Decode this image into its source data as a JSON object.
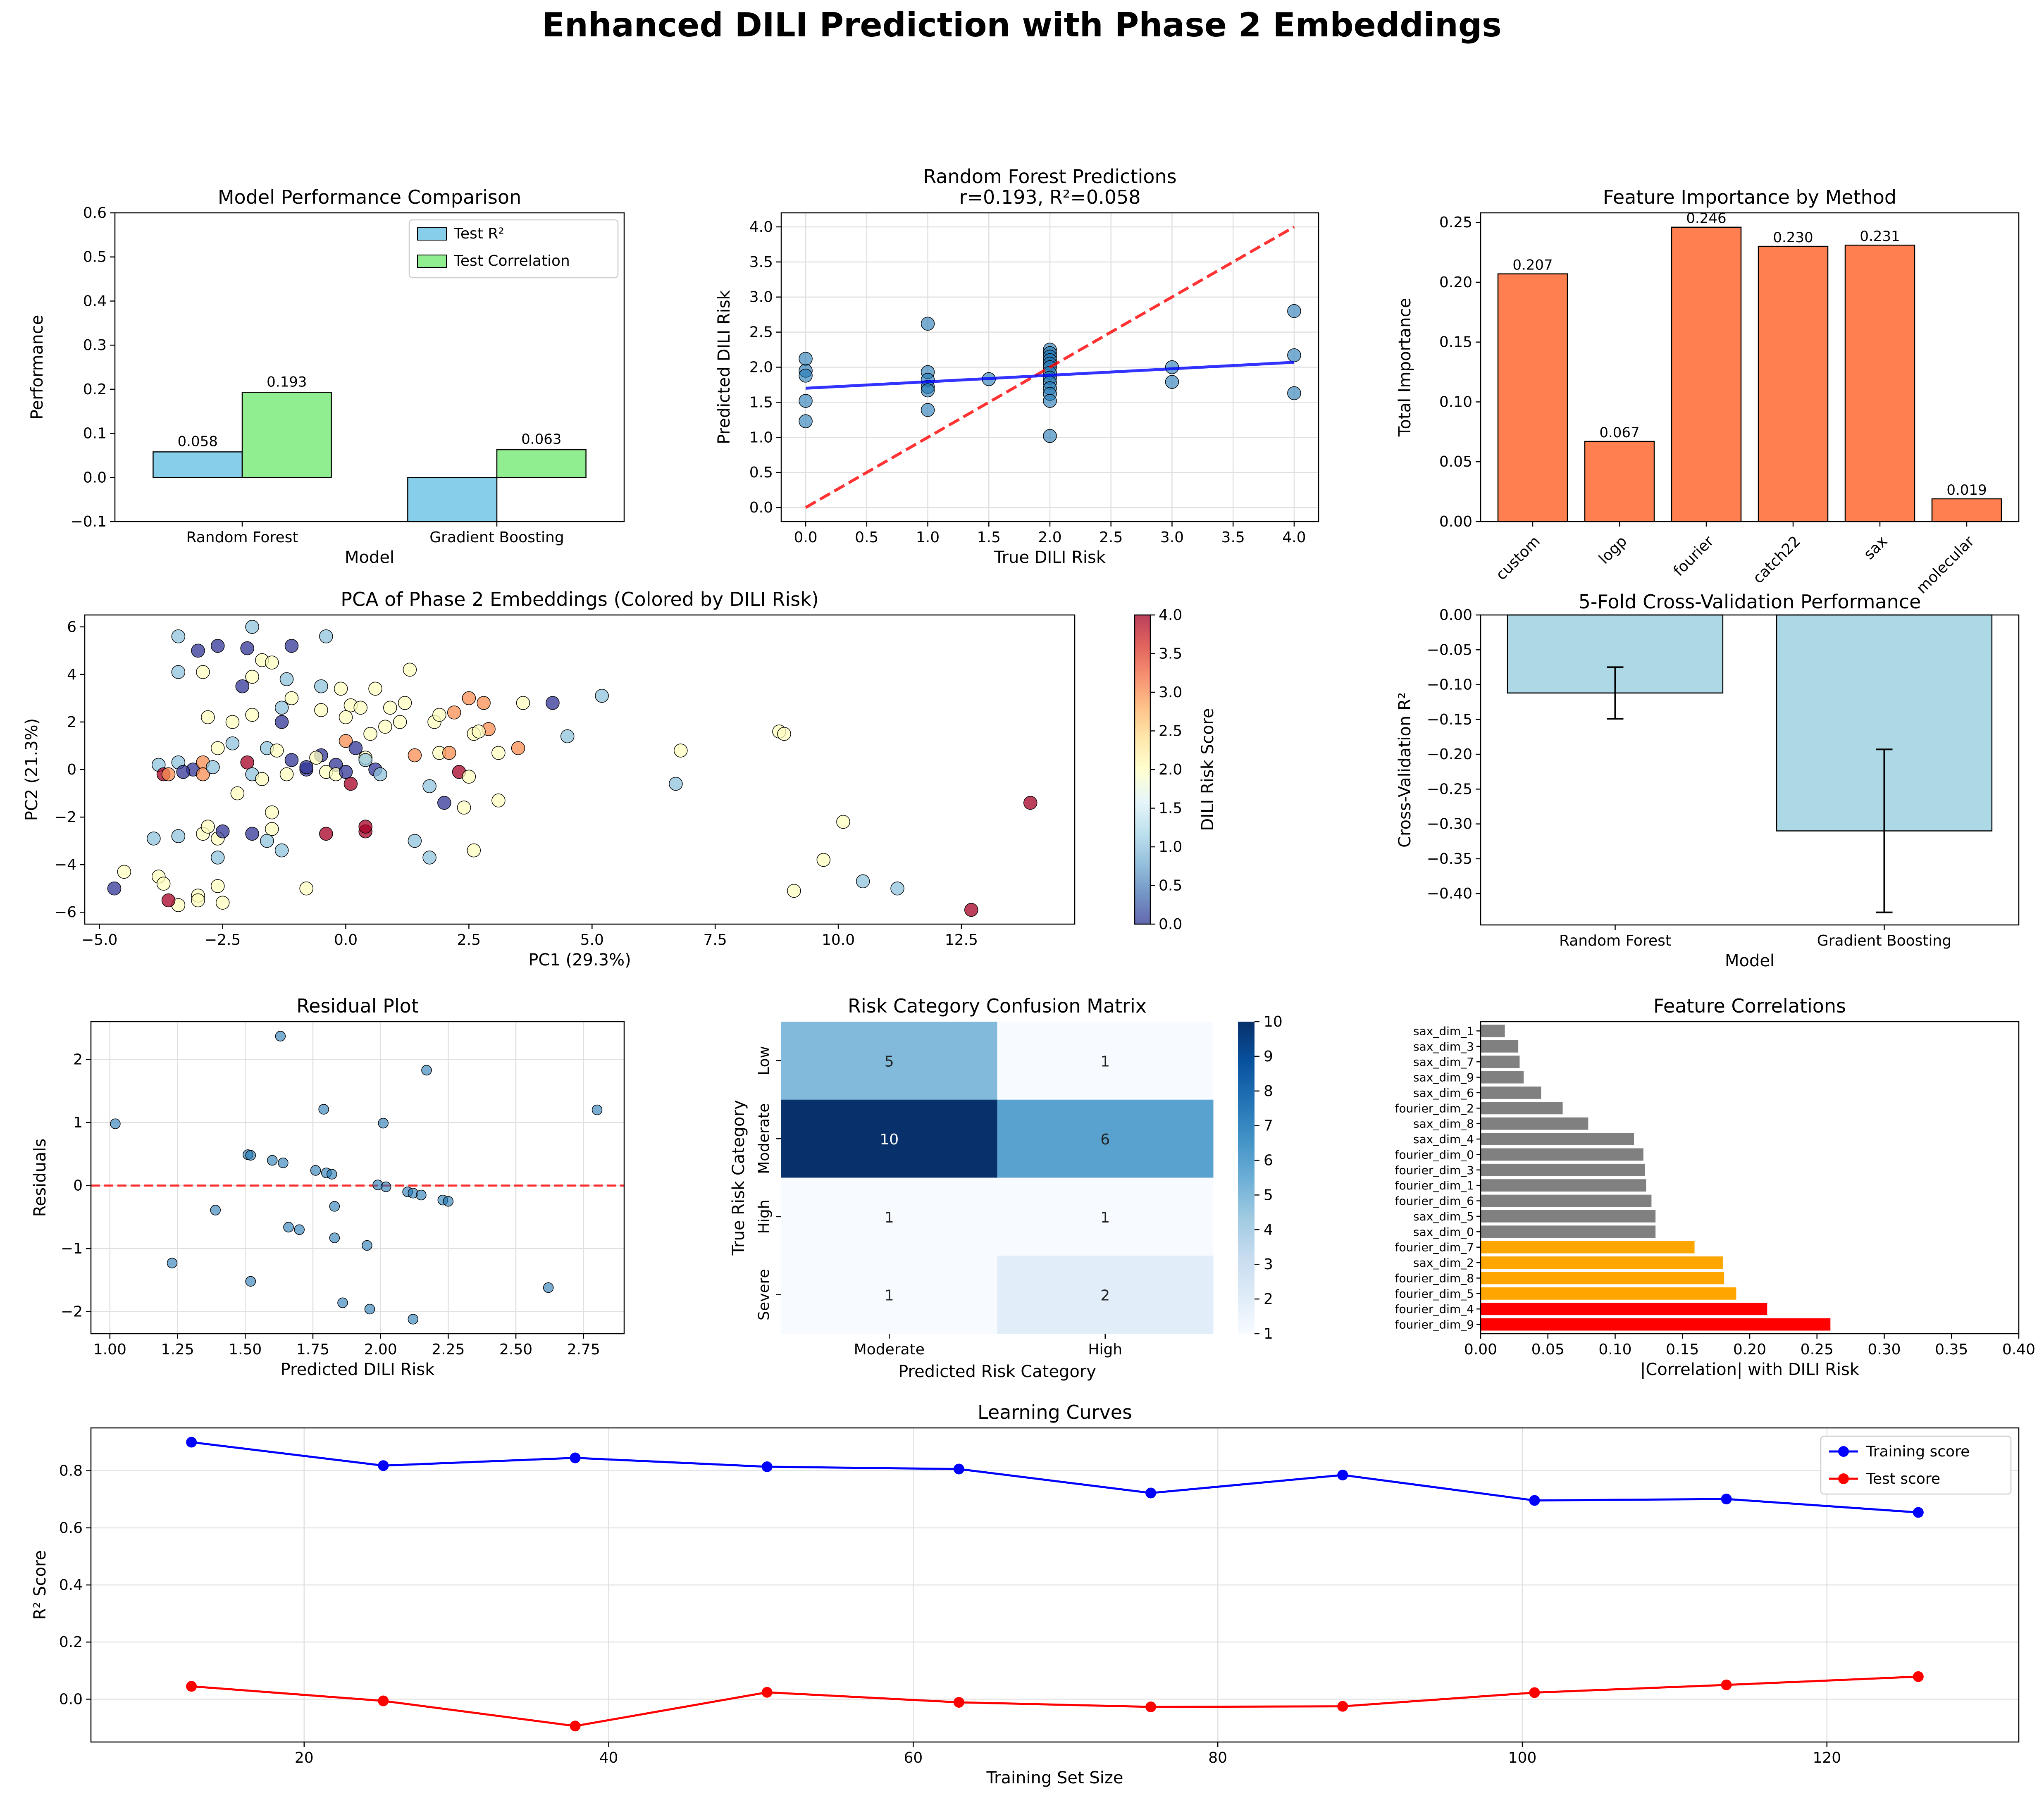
{
  "figure_title": "Enhanced DILI Prediction with Phase 2 Embeddings",
  "chart_data": [
    {
      "id": "model-performance",
      "type": "bar",
      "title": "Model Performance Comparison",
      "xlabel": "Model",
      "ylabel": "Performance",
      "categories": [
        "Random Forest",
        "Gradient Boosting"
      ],
      "series": [
        {
          "name": "Test R²",
          "values": [
            0.058,
            -0.1
          ],
          "value_labels": [
            "0.058",
            ""
          ],
          "color": "#87CEEB"
        },
        {
          "name": "Test Correlation",
          "values": [
            0.193,
            0.063
          ],
          "value_labels": [
            "0.193",
            "0.063"
          ],
          "color": "#90EE90"
        }
      ],
      "ylim": [
        -0.1,
        0.6
      ],
      "yticks": [
        -0.1,
        0.0,
        0.1,
        0.2,
        0.3,
        0.4,
        0.5,
        0.6
      ],
      "legend": "top-right"
    },
    {
      "id": "rf-predictions",
      "type": "scatter",
      "title": "Random Forest Predictions",
      "subtitle": "r=0.193, R²=0.058",
      "xlabel": "True DILI Risk",
      "ylabel": "Predicted DILI Risk",
      "xlim": [
        -0.2,
        4.2
      ],
      "ylim": [
        -0.2,
        4.2
      ],
      "xticks": [
        0.0,
        0.5,
        1.0,
        1.5,
        2.0,
        2.5,
        3.0,
        3.5,
        4.0
      ],
      "yticks": [
        0.0,
        0.5,
        1.0,
        1.5,
        2.0,
        2.5,
        3.0,
        3.5,
        4.0
      ],
      "points": [
        [
          0,
          2.12
        ],
        [
          0,
          1.95
        ],
        [
          0,
          1.88
        ],
        [
          0,
          1.52
        ],
        [
          0,
          1.23
        ],
        [
          1,
          2.62
        ],
        [
          1,
          1.93
        ],
        [
          1,
          1.82
        ],
        [
          1,
          1.72
        ],
        [
          1,
          1.67
        ],
        [
          1,
          1.39
        ],
        [
          1.5,
          1.83
        ],
        [
          2,
          2.25
        ],
        [
          2,
          2.2
        ],
        [
          2,
          2.15
        ],
        [
          2,
          2.1
        ],
        [
          2,
          2.05
        ],
        [
          2,
          2.0
        ],
        [
          2,
          1.92
        ],
        [
          2,
          1.85
        ],
        [
          2,
          1.78
        ],
        [
          2,
          1.7
        ],
        [
          2,
          1.62
        ],
        [
          2,
          1.52
        ],
        [
          2,
          1.02
        ],
        [
          3,
          2.0
        ],
        [
          3,
          1.79
        ],
        [
          4,
          2.8
        ],
        [
          4,
          2.17
        ],
        [
          4,
          1.63
        ]
      ],
      "fit_line": [
        [
          0,
          1.7
        ],
        [
          4,
          2.07
        ]
      ],
      "ideal_line": [
        [
          0,
          0
        ],
        [
          4,
          4
        ]
      ],
      "grid": true
    },
    {
      "id": "feature-importance",
      "type": "bar",
      "title": "Feature Importance by Method",
      "ylabel": "Total Importance",
      "categories": [
        "custom",
        "logp",
        "fourier",
        "catch22",
        "sax",
        "molecular"
      ],
      "values": [
        0.207,
        0.067,
        0.246,
        0.23,
        0.231,
        0.019
      ],
      "value_labels": [
        "0.207",
        "0.067",
        "0.246",
        "0.230",
        "0.231",
        "0.019"
      ],
      "ylim": [
        0,
        0.258
      ],
      "yticks": [
        0.0,
        0.05,
        0.1,
        0.15,
        0.2,
        0.25
      ],
      "color": "#FF7F50"
    },
    {
      "id": "pca",
      "type": "scatter",
      "title": "PCA of Phase 2 Embeddings (Colored by DILI Risk)",
      "xlabel": "PC1 (29.3%)",
      "ylabel": "PC2 (21.3%)",
      "colorbar_label": "DILI Risk Score",
      "xlim": [
        -5.3,
        14.8
      ],
      "ylim": [
        -6.5,
        6.5
      ],
      "xticks": [
        -5.0,
        -2.5,
        0.0,
        2.5,
        5.0,
        7.5,
        10.0,
        12.5
      ],
      "yticks": [
        -6,
        -4,
        -2,
        0,
        2,
        4,
        6
      ],
      "cticks": [
        0.0,
        0.5,
        1.0,
        1.5,
        2.0,
        2.5,
        3.0,
        3.5,
        4.0
      ],
      "points": [
        [
          -3.4,
          5.6
        ],
        [
          -1.9,
          6.0
        ],
        [
          -0.4,
          5.6
        ],
        [
          -2.6,
          5.2
        ],
        [
          -2.0,
          5.1
        ],
        [
          -1.1,
          5.2
        ],
        [
          -3.0,
          5.0
        ],
        [
          -3.4,
          4.1
        ],
        [
          -2.9,
          4.1
        ],
        [
          -1.7,
          4.6
        ],
        [
          -1.5,
          4.5
        ],
        [
          -1.2,
          3.8
        ],
        [
          -0.5,
          3.5
        ],
        [
          -0.1,
          3.4
        ],
        [
          0.6,
          3.4
        ],
        [
          1.3,
          4.2
        ],
        [
          -2.1,
          3.5
        ],
        [
          -1.9,
          3.9
        ],
        [
          -1.1,
          3.0
        ],
        [
          0.1,
          2.7
        ],
        [
          0.3,
          2.6
        ],
        [
          0.9,
          2.6
        ],
        [
          1.2,
          2.8
        ],
        [
          -2.8,
          2.2
        ],
        [
          -2.3,
          2.0
        ],
        [
          -1.9,
          2.3
        ],
        [
          -1.3,
          2.0
        ],
        [
          -0.5,
          2.5
        ],
        [
          0.0,
          2.2
        ],
        [
          0.5,
          1.5
        ],
        [
          0.8,
          1.8
        ],
        [
          1.1,
          2.0
        ],
        [
          1.8,
          2.0
        ],
        [
          1.9,
          2.3
        ],
        [
          2.2,
          2.4
        ],
        [
          2.5,
          3.0
        ],
        [
          2.8,
          2.8
        ],
        [
          3.6,
          2.8
        ],
        [
          4.2,
          2.8
        ],
        [
          5.2,
          3.1
        ],
        [
          4.5,
          1.4
        ],
        [
          2.6,
          1.5
        ],
        [
          2.9,
          1.7
        ],
        [
          3.1,
          0.7
        ],
        [
          2.7,
          1.6
        ],
        [
          3.5,
          0.9
        ],
        [
          1.9,
          0.7
        ],
        [
          2.1,
          0.7
        ],
        [
          1.4,
          0.6
        ],
        [
          -3.8,
          0.2
        ],
        [
          -3.4,
          0.3
        ],
        [
          -3.1,
          0.0
        ],
        [
          -2.9,
          0.3
        ],
        [
          -2.6,
          0.9
        ],
        [
          -2.3,
          1.1
        ],
        [
          -2.0,
          0.3
        ],
        [
          -1.6,
          0.9
        ],
        [
          -1.4,
          0.8
        ],
        [
          -1.1,
          0.4
        ],
        [
          -0.8,
          0.0
        ],
        [
          -0.5,
          0.6
        ],
        [
          -0.2,
          0.2
        ],
        [
          0.0,
          1.2
        ],
        [
          0.2,
          0.9
        ],
        [
          0.4,
          0.5
        ],
        [
          0.6,
          0.0
        ],
        [
          0.7,
          -0.2
        ],
        [
          -3.7,
          -0.2
        ],
        [
          -3.6,
          -0.2
        ],
        [
          -3.3,
          -0.1
        ],
        [
          -2.9,
          -0.2
        ],
        [
          -2.7,
          0.1
        ],
        [
          -1.9,
          -0.2
        ],
        [
          -1.7,
          -0.4
        ],
        [
          -0.8,
          0.1
        ],
        [
          -0.4,
          -0.1
        ],
        [
          -0.2,
          -0.2
        ],
        [
          0.1,
          -0.6
        ],
        [
          1.7,
          -0.7
        ],
        [
          2.0,
          -1.4
        ],
        [
          2.3,
          -0.1
        ],
        [
          2.5,
          -0.3
        ],
        [
          3.1,
          -1.3
        ],
        [
          2.4,
          -1.6
        ],
        [
          -3.9,
          -2.9
        ],
        [
          -3.4,
          -2.8
        ],
        [
          -2.9,
          -2.7
        ],
        [
          -2.8,
          -2.4
        ],
        [
          -2.6,
          -2.9
        ],
        [
          -2.5,
          -2.6
        ],
        [
          -1.9,
          -2.7
        ],
        [
          -1.5,
          -1.8
        ],
        [
          -1.5,
          -2.5
        ],
        [
          -1.6,
          -3.0
        ],
        [
          -0.4,
          -2.7
        ],
        [
          0.4,
          -2.6
        ],
        [
          0.4,
          -2.4
        ],
        [
          1.4,
          -3.0
        ],
        [
          1.7,
          -3.7
        ],
        [
          2.6,
          -3.4
        ],
        [
          -4.5,
          -4.3
        ],
        [
          -3.8,
          -4.5
        ],
        [
          -3.7,
          -4.8
        ],
        [
          -3.4,
          -5.7
        ],
        [
          -3.0,
          -5.3
        ],
        [
          -2.6,
          -4.9
        ],
        [
          -2.5,
          -5.6
        ],
        [
          -4.7,
          -5.0
        ],
        [
          -0.8,
          -5.0
        ],
        [
          -3.0,
          -5.5
        ],
        [
          -3.6,
          -5.5
        ],
        [
          -2.6,
          -3.7
        ],
        [
          -1.3,
          -3.4
        ],
        [
          6.7,
          -0.6
        ],
        [
          6.8,
          0.8
        ],
        [
          8.8,
          1.6
        ],
        [
          8.9,
          1.5
        ],
        [
          9.7,
          -3.8
        ],
        [
          9.1,
          -5.1
        ],
        [
          10.1,
          -2.2
        ],
        [
          10.5,
          -4.7
        ],
        [
          11.2,
          -5.0
        ],
        [
          12.7,
          -5.9
        ],
        [
          13.9,
          -1.4
        ],
        [
          0.4,
          0.4
        ],
        [
          -1.2,
          -0.2
        ],
        [
          -0.6,
          0.5
        ],
        [
          0.0,
          -0.1
        ],
        [
          -2.2,
          -1.0
        ],
        [
          -1.3,
          2.6
        ]
      ],
      "values": [
        1,
        1,
        1,
        0,
        0,
        0,
        0,
        1,
        2,
        2,
        2,
        1,
        1,
        2,
        2,
        2,
        0,
        2,
        2,
        2,
        2,
        2,
        2,
        2,
        2,
        2,
        0,
        2,
        2,
        2,
        2,
        2,
        2,
        2,
        3,
        3,
        3,
        2,
        0,
        1,
        1,
        2,
        3,
        2,
        2,
        3,
        2,
        3,
        3,
        1,
        1,
        0,
        3,
        2,
        1,
        4,
        1,
        2,
        0,
        0,
        0,
        0,
        3,
        0,
        2,
        0,
        1,
        4,
        3,
        0,
        3,
        1,
        1,
        2,
        0,
        2,
        2,
        4,
        1,
        0,
        4,
        2,
        2,
        2,
        1,
        1,
        2,
        2,
        2,
        0,
        0,
        2,
        2,
        1,
        4,
        4,
        4,
        1,
        1,
        2,
        2,
        2,
        2,
        2,
        2,
        2,
        2,
        0,
        2,
        2,
        4,
        1,
        1,
        1,
        2,
        2,
        2,
        2,
        2,
        2,
        1,
        1,
        4,
        4,
        1,
        2,
        2,
        0,
        2,
        1,
        4
      ],
      "colormap": "RdYlBu_r"
    },
    {
      "id": "cross-validation",
      "type": "bar",
      "title": "5-Fold Cross-Validation Performance",
      "xlabel": "Model",
      "ylabel": "Cross-Validation R²",
      "categories": [
        "Random Forest",
        "Gradient Boosting"
      ],
      "values": [
        -0.112,
        -0.31
      ],
      "errors": [
        0.037,
        0.117
      ],
      "ylim": [
        -0.445,
        0.0
      ],
      "yticks": [
        0.0,
        -0.05,
        -0.1,
        -0.15,
        -0.2,
        -0.25,
        -0.3,
        -0.35,
        -0.4
      ],
      "color": "#ADD8E6"
    },
    {
      "id": "residuals",
      "type": "scatter",
      "title": "Residual Plot",
      "xlabel": "Predicted DILI Risk",
      "ylabel": "Residuals",
      "xlim": [
        0.93,
        2.9
      ],
      "ylim": [
        -2.35,
        2.6
      ],
      "xticks": [
        1.0,
        1.25,
        1.5,
        1.75,
        2.0,
        2.25,
        2.5,
        2.75
      ],
      "yticks": [
        -2,
        -1,
        0,
        1,
        2
      ],
      "points": [
        [
          1.02,
          0.98
        ],
        [
          1.23,
          -1.23
        ],
        [
          1.39,
          -0.39
        ],
        [
          1.51,
          0.49
        ],
        [
          1.52,
          0.48
        ],
        [
          1.52,
          -1.52
        ],
        [
          1.6,
          0.4
        ],
        [
          1.63,
          2.37
        ],
        [
          1.64,
          0.36
        ],
        [
          1.66,
          -0.66
        ],
        [
          1.7,
          -0.7
        ],
        [
          1.76,
          0.24
        ],
        [
          1.79,
          1.21
        ],
        [
          1.8,
          0.2
        ],
        [
          1.82,
          0.18
        ],
        [
          1.83,
          -0.33
        ],
        [
          1.83,
          -0.83
        ],
        [
          1.86,
          -1.86
        ],
        [
          1.95,
          -0.95
        ],
        [
          1.96,
          -1.96
        ],
        [
          1.99,
          0.01
        ],
        [
          2.01,
          0.99
        ],
        [
          2.02,
          -0.02
        ],
        [
          2.1,
          -0.1
        ],
        [
          2.12,
          -0.12
        ],
        [
          2.12,
          -2.12
        ],
        [
          2.15,
          -0.15
        ],
        [
          2.17,
          1.83
        ],
        [
          2.23,
          -0.23
        ],
        [
          2.25,
          -0.25
        ],
        [
          2.62,
          -1.62
        ],
        [
          2.8,
          1.2
        ]
      ],
      "zero_line": 0,
      "grid": true
    },
    {
      "id": "confusion-matrix",
      "type": "heatmap",
      "title": "Risk Category Confusion Matrix",
      "xlabel": "Predicted Risk Category",
      "ylabel": "True Risk Category",
      "columns": [
        "Moderate",
        "High"
      ],
      "rows": [
        "Low",
        "Moderate",
        "High",
        "Severe"
      ],
      "matrix": [
        [
          5,
          1
        ],
        [
          10,
          6
        ],
        [
          1,
          1
        ],
        [
          1,
          2
        ]
      ],
      "vmin": 1,
      "vmax": 10,
      "cticks": [
        1,
        2,
        3,
        4,
        5,
        6,
        7,
        8,
        9,
        10
      ],
      "colormap": "Blues"
    },
    {
      "id": "feature-correlations",
      "type": "bar",
      "orientation": "horizontal",
      "title": "Feature Correlations",
      "xlabel": "|Correlation| with DILI Risk",
      "categories": [
        "sax_dim_1",
        "sax_dim_3",
        "sax_dim_7",
        "sax_dim_9",
        "sax_dim_6",
        "fourier_dim_2",
        "sax_dim_8",
        "sax_dim_4",
        "fourier_dim_0",
        "fourier_dim_3",
        "fourier_dim_1",
        "fourier_dim_6",
        "sax_dim_5",
        "sax_dim_0",
        "fourier_dim_7",
        "sax_dim_2",
        "fourier_dim_8",
        "fourier_dim_5",
        "fourier_dim_4",
        "fourier_dim_9"
      ],
      "values": [
        0.018,
        0.028,
        0.029,
        0.032,
        0.045,
        0.061,
        0.08,
        0.114,
        0.121,
        0.122,
        0.123,
        0.127,
        0.13,
        0.13,
        0.159,
        0.18,
        0.181,
        0.19,
        0.213,
        0.26
      ],
      "colors": [
        "#808080",
        "#808080",
        "#808080",
        "#808080",
        "#808080",
        "#808080",
        "#808080",
        "#808080",
        "#808080",
        "#808080",
        "#808080",
        "#808080",
        "#808080",
        "#808080",
        "#FFA500",
        "#FFA500",
        "#FFA500",
        "#FFA500",
        "#FF0000",
        "#FF0000"
      ],
      "xlim": [
        0,
        0.4
      ],
      "xticks": [
        0.0,
        0.05,
        0.1,
        0.15,
        0.2,
        0.25,
        0.3,
        0.35,
        0.4
      ]
    },
    {
      "id": "learning-curves",
      "type": "line",
      "title": "Learning Curves",
      "xlabel": "Training Set Size",
      "ylabel": "R² Score",
      "x": [
        12.6,
        25.2,
        37.8,
        50.4,
        63.0,
        75.6,
        88.2,
        100.8,
        113.4,
        126.0
      ],
      "series": [
        {
          "name": "Training score",
          "values": [
            0.9,
            0.818,
            0.845,
            0.814,
            0.806,
            0.722,
            0.785,
            0.696,
            0.701,
            0.654
          ],
          "color": "#0000FF"
        },
        {
          "name": "Test score",
          "values": [
            0.045,
            -0.006,
            -0.094,
            0.024,
            -0.011,
            -0.027,
            -0.025,
            0.023,
            0.05,
            0.079
          ],
          "color": "#FF0000"
        }
      ],
      "xlim": [
        6.0,
        132.6
      ],
      "ylim": [
        -0.15,
        0.95
      ],
      "xticks": [
        20,
        40,
        60,
        80,
        100,
        120
      ],
      "yticks": [
        0.0,
        0.2,
        0.4,
        0.6,
        0.8
      ],
      "legend": "top-right",
      "grid": true
    }
  ]
}
